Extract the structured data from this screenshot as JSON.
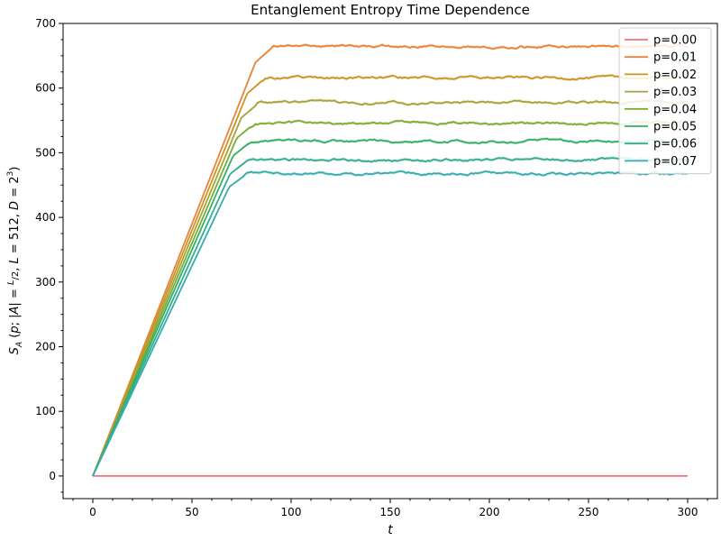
{
  "chart_data": {
    "type": "line",
    "title": "Entanglement Entropy Time Dependence",
    "xlabel": "t",
    "ylabel": "S_A (p; |A| = L/2, L = 512, D = 2^3)",
    "xlim": [
      -15,
      315
    ],
    "ylim": [
      -35,
      700
    ],
    "xticks": [
      0,
      50,
      100,
      150,
      200,
      250,
      300
    ],
    "yticks": [
      0,
      100,
      200,
      300,
      400,
      500,
      600,
      700
    ],
    "grid": false,
    "legend_position": "top-right",
    "series": [
      {
        "name": "p=0.00",
        "color": "#f4707a",
        "slope": 0,
        "plateau": 0
      },
      {
        "name": "p=0.01",
        "color": "#e8833a",
        "slope": 7.8,
        "plateau": 665
      },
      {
        "name": "p=0.02",
        "color": "#cf931f",
        "slope": 7.6,
        "plateau": 616
      },
      {
        "name": "p=0.03",
        "color": "#a8a23a",
        "slope": 7.4,
        "plateau": 578
      },
      {
        "name": "p=0.04",
        "color": "#78ae32",
        "slope": 7.2,
        "plateau": 546
      },
      {
        "name": "p=0.05",
        "color": "#33b064",
        "slope": 7.0,
        "plateau": 518
      },
      {
        "name": "p=0.06",
        "color": "#34ad8e",
        "slope": 6.75,
        "plateau": 489
      },
      {
        "name": "p=0.07",
        "color": "#36abb0",
        "slope": 6.5,
        "plateau": 468
      }
    ]
  }
}
